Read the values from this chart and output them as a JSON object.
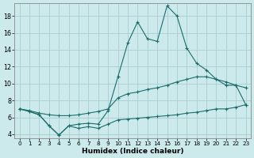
{
  "xlabel": "Humidex (Indice chaleur)",
  "xlim": [
    -0.5,
    23.5
  ],
  "ylim": [
    3.5,
    19.5
  ],
  "xticks": [
    0,
    1,
    2,
    3,
    4,
    5,
    6,
    7,
    8,
    9,
    10,
    11,
    12,
    13,
    14,
    15,
    16,
    17,
    18,
    19,
    20,
    21,
    22,
    23
  ],
  "yticks": [
    4,
    6,
    8,
    10,
    12,
    14,
    16,
    18
  ],
  "background_color": "#cce9ec",
  "grid_color": "#aacdd2",
  "line_color": "#1a6e6a",
  "series_max": [
    7.0,
    6.7,
    6.3,
    5.0,
    3.9,
    5.0,
    5.2,
    5.3,
    5.2,
    6.8,
    10.8,
    14.8,
    17.3,
    15.3,
    15.0,
    19.2,
    18.0,
    14.2,
    12.4,
    11.6,
    10.5,
    9.8,
    9.8,
    7.5
  ],
  "series_avg": [
    7.0,
    6.8,
    6.5,
    6.3,
    6.2,
    6.2,
    6.3,
    6.5,
    6.7,
    7.0,
    8.3,
    8.8,
    9.0,
    9.3,
    9.5,
    9.8,
    10.2,
    10.5,
    10.8,
    10.8,
    10.5,
    10.2,
    9.8,
    9.5
  ],
  "series_min": [
    7.0,
    6.7,
    6.3,
    5.0,
    3.9,
    5.0,
    4.7,
    4.9,
    4.7,
    5.2,
    5.7,
    5.8,
    5.9,
    6.0,
    6.1,
    6.2,
    6.3,
    6.5,
    6.6,
    6.8,
    7.0,
    7.0,
    7.2,
    7.5
  ]
}
